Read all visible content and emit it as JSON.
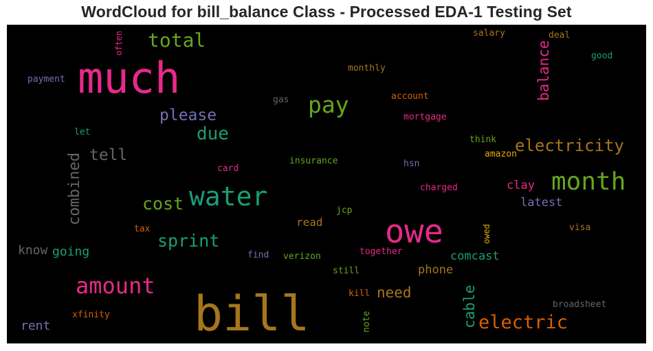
{
  "title": "WordCloud for bill_balance Class - Processed EDA-1 Testing Set",
  "colors": {
    "pink": "#e7298a",
    "orange": "#d95f02",
    "green": "#66a61e",
    "teal": "#1b9e77",
    "purple": "#7570b3",
    "gold": "#a6761d",
    "yellow": "#e6ab02",
    "grey": "#666666"
  },
  "words": [
    {
      "text": "much",
      "color": "#e7298a"
    },
    {
      "text": "bill",
      "color": "#a6761d"
    },
    {
      "text": "owe",
      "color": "#e7298a"
    },
    {
      "text": "water",
      "color": "#1b9e77"
    },
    {
      "text": "month",
      "color": "#66a61e"
    },
    {
      "text": "amount",
      "color": "#e7298a"
    },
    {
      "text": "pay",
      "color": "#66a61e"
    },
    {
      "text": "total",
      "color": "#66a61e"
    },
    {
      "text": "electric",
      "color": "#d95f02"
    },
    {
      "text": "electricity",
      "color": "#a6761d"
    },
    {
      "text": "sprint",
      "color": "#1b9e77"
    },
    {
      "text": "cost",
      "color": "#66a61e"
    },
    {
      "text": "due",
      "color": "#1b9e77"
    },
    {
      "text": "please",
      "color": "#7570b3"
    },
    {
      "text": "tell",
      "color": "#666666"
    },
    {
      "text": "combined",
      "color": "#666666"
    },
    {
      "text": "balance",
      "color": "#e7298a"
    },
    {
      "text": "cable",
      "color": "#1b9e77"
    },
    {
      "text": "need",
      "color": "#a6761d"
    },
    {
      "text": "going",
      "color": "#1b9e77"
    },
    {
      "text": "know",
      "color": "#666666"
    },
    {
      "text": "rent",
      "color": "#7570b3"
    },
    {
      "text": "comcast",
      "color": "#1b9e77"
    },
    {
      "text": "phone",
      "color": "#a6761d"
    },
    {
      "text": "clay",
      "color": "#e7298a"
    },
    {
      "text": "latest",
      "color": "#7570b3"
    },
    {
      "text": "read",
      "color": "#a6761d"
    },
    {
      "text": "payment",
      "color": "#7570b3"
    },
    {
      "text": "often",
      "color": "#e7298a"
    },
    {
      "text": "salary",
      "color": "#a6761d"
    },
    {
      "text": "deal",
      "color": "#a6761d"
    },
    {
      "text": "good",
      "color": "#1b9e77"
    },
    {
      "text": "monthly",
      "color": "#a6761d"
    },
    {
      "text": "gas",
      "color": "#666666"
    },
    {
      "text": "account",
      "color": "#d95f02"
    },
    {
      "text": "mortgage",
      "color": "#e7298a"
    },
    {
      "text": "let",
      "color": "#1b9e77"
    },
    {
      "text": "think",
      "color": "#66a61e"
    },
    {
      "text": "amazon",
      "color": "#e6ab02"
    },
    {
      "text": "card",
      "color": "#e7298a"
    },
    {
      "text": "insurance",
      "color": "#66a61e"
    },
    {
      "text": "hsn",
      "color": "#7570b3"
    },
    {
      "text": "charged",
      "color": "#e7298a"
    },
    {
      "text": "jcp",
      "color": "#66a61e"
    },
    {
      "text": "tax",
      "color": "#d95f02"
    },
    {
      "text": "owed",
      "color": "#e6ab02"
    },
    {
      "text": "visa",
      "color": "#a6761d"
    },
    {
      "text": "find",
      "color": "#7570b3"
    },
    {
      "text": "verizon",
      "color": "#66a61e"
    },
    {
      "text": "together",
      "color": "#e7298a"
    },
    {
      "text": "still",
      "color": "#66a61e"
    },
    {
      "text": "kill",
      "color": "#d95f02"
    },
    {
      "text": "note",
      "color": "#66a61e"
    },
    {
      "text": "xfinity",
      "color": "#d95f02"
    },
    {
      "text": "broadsheet",
      "color": "#666666"
    }
  ]
}
